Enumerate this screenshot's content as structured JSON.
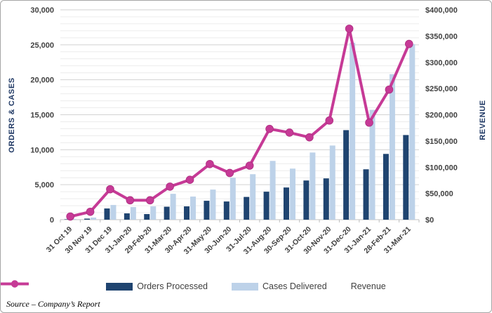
{
  "chart_data": {
    "type": "combo-bar-line",
    "categories": [
      "31 Oct 19",
      "30 Nov 19",
      "31 Dec 19",
      "31-Jan-20",
      "29-Feb-20",
      "31-Mar-20",
      "30-Apr-20",
      "31-May-20",
      "30-Jun-20",
      "31-Jul-20",
      "31-Aug-20",
      "30-Sep-20",
      "31-Oct-20",
      "30-Nov-20",
      "31-Dec-20",
      "31-Jan-21",
      "28-Feb-21",
      "31-Mar-21"
    ],
    "series": [
      {
        "name": "Orders Processed",
        "type": "bar",
        "axis": "left",
        "color": "#1F4470",
        "values": [
          50,
          150,
          1600,
          900,
          800,
          1850,
          1900,
          2700,
          2600,
          3250,
          4000,
          4600,
          5600,
          5900,
          12800,
          7200,
          9400,
          12100
        ]
      },
      {
        "name": "Cases Delivered",
        "type": "bar",
        "axis": "left",
        "color": "#BDD2E9",
        "values": [
          100,
          300,
          2100,
          1800,
          1900,
          3700,
          3300,
          4300,
          6000,
          6500,
          8400,
          7300,
          9600,
          10600,
          25300,
          15700,
          20800,
          25100
        ]
      },
      {
        "name": "Revenue",
        "type": "line",
        "axis": "right",
        "color": "#C63A96",
        "values": [
          6000,
          15000,
          58000,
          37000,
          37000,
          63000,
          76000,
          106000,
          89000,
          103000,
          173000,
          166000,
          157000,
          189000,
          364000,
          185000,
          248000,
          335000
        ]
      }
    ],
    "left_axis": {
      "title": "ORDERS & CASES",
      "min": 0,
      "max": 30000,
      "major_step": 5000,
      "minor_step": 1000,
      "tick_labels": [
        "0",
        "5,000",
        "10,000",
        "15,000",
        "20,000",
        "25,000",
        "30,000"
      ]
    },
    "right_axis": {
      "title": "REVENUE",
      "min": 0,
      "max": 400000,
      "major_step": 50000,
      "tick_labels": [
        "$0",
        "$50,000",
        "$100,000",
        "$150,000",
        "$200,000",
        "$250,000",
        "$300,000",
        "$350,000",
        "$400,000"
      ]
    },
    "grid": {
      "minor": true,
      "major": true
    },
    "legend_position": "bottom"
  },
  "source_note": "Source – Company’s Report"
}
